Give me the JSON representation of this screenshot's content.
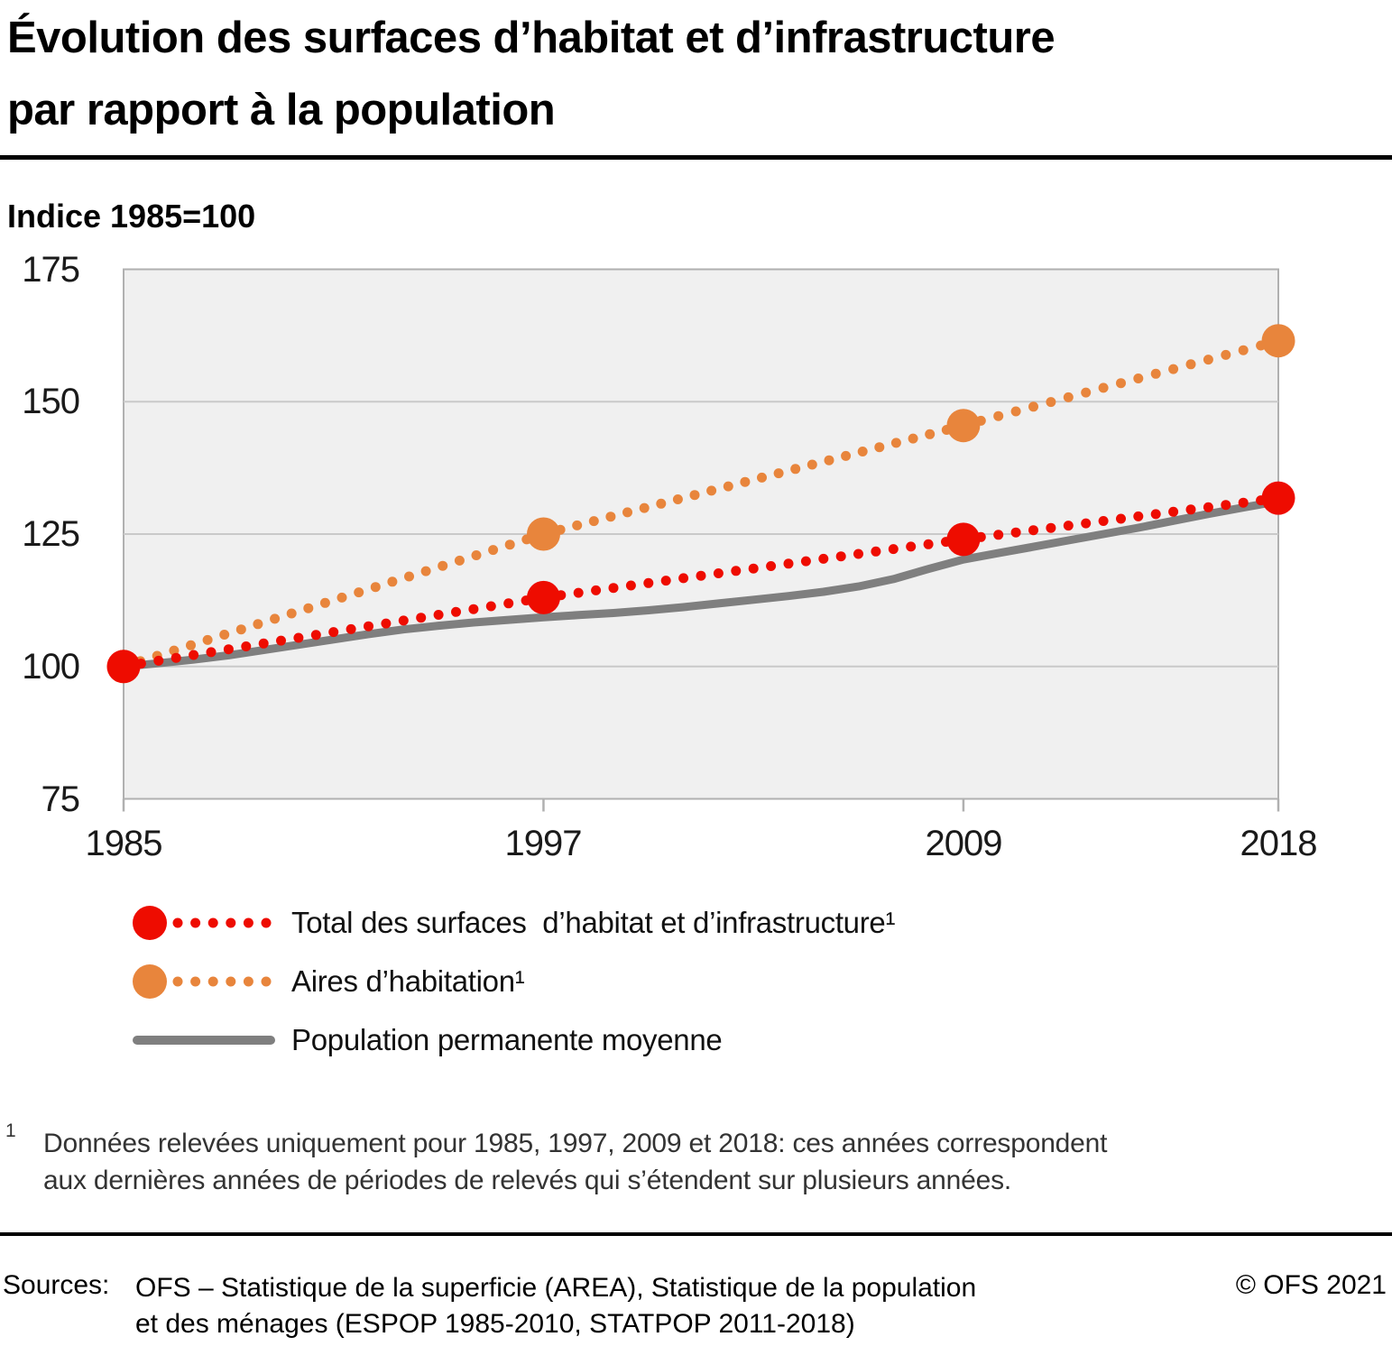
{
  "header": {
    "title_line1": "Évolution des surfaces d’habitat et d’infrastructure",
    "title_line2": "par rapport à la population",
    "subtitle": "Indice 1985=100"
  },
  "chart_data": {
    "type": "line",
    "title": "Évolution des surfaces d’habitat et d’infrastructure par rapport à la population",
    "subtitle": "Indice 1985=100",
    "xlim": [
      1985,
      2018
    ],
    "ylim": [
      75,
      175
    ],
    "x_ticks": [
      1985,
      1997,
      2009,
      2018
    ],
    "y_ticks": [
      175,
      150,
      125,
      100,
      75
    ],
    "grid": "horizontal",
    "legend_position": "bottom-left",
    "plot_background": "#f0f0f0",
    "plot_border": "#b0b0b0",
    "gridline_color": "#c9c9c9",
    "series": [
      {
        "name": "Total des surfaces  d’habitat et d’infrastructure¹",
        "style": "dotted-with-markers",
        "color": "#ee0c00",
        "x": [
          1985,
          1997,
          2009,
          2018
        ],
        "values": [
          100,
          113,
          124,
          131.8
        ]
      },
      {
        "name": "Aires d’habitation¹",
        "style": "dotted-with-markers",
        "color": "#e8853c",
        "x": [
          1985,
          1997,
          2009,
          2018
        ],
        "values": [
          100,
          125,
          145.5,
          161.5
        ]
      },
      {
        "name": "Population permanente moyenne",
        "style": "solid-line",
        "color": "#7f7f7f",
        "x": [
          1985,
          1986,
          1987,
          1988,
          1989,
          1990,
          1991,
          1992,
          1993,
          1994,
          1995,
          1996,
          1997,
          1998,
          1999,
          2000,
          2001,
          2002,
          2003,
          2004,
          2005,
          2006,
          2007,
          2008,
          2009,
          2010,
          2011,
          2012,
          2013,
          2014,
          2015,
          2016,
          2017,
          2018
        ],
        "values": [
          100,
          100.6,
          101.3,
          102.1,
          103.1,
          104.1,
          105.1,
          106.1,
          107.0,
          107.7,
          108.3,
          108.8,
          109.3,
          109.7,
          110.1,
          110.6,
          111.2,
          111.9,
          112.6,
          113.3,
          114.1,
          115.1,
          116.5,
          118.4,
          120.2,
          121.4,
          122.6,
          123.8,
          125.0,
          126.2,
          127.5,
          128.8,
          130.0,
          131.2
        ]
      }
    ]
  },
  "footnote": {
    "marker": "1",
    "line1": "Données relevées uniquement pour 1985, 1997, 2009 et 2018: ces années correspondent",
    "line2": "aux dernières années de périodes de relevés qui s’étendent sur plusieurs années."
  },
  "footer": {
    "sources_label": "Sources:",
    "source_line1": "OFS – Statistique de la superficie (AREA), Statistique de la population",
    "source_line2": "et des ménages (ESPOP 1985-2010, STATPOP 2011-2018)",
    "copyright": "© OFS 2021"
  }
}
